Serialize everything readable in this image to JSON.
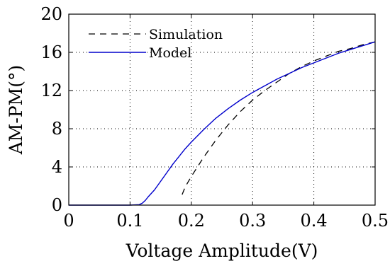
{
  "chart_data": {
    "type": "line",
    "title": "",
    "xlabel": "Voltage Amplitude(V)",
    "ylabel": "AM-PM(°)",
    "xlim": [
      0,
      0.5
    ],
    "ylim": [
      0,
      20
    ],
    "xticks": [
      0,
      0.1,
      0.2,
      0.3,
      0.4,
      0.5
    ],
    "xtick_labels": [
      "0",
      "0.1",
      "0.2",
      "0.3",
      "0.4",
      "0.5"
    ],
    "yticks": [
      0,
      4,
      8,
      12,
      16,
      20
    ],
    "ytick_labels": [
      "0",
      "4",
      "8",
      "12",
      "16",
      "20"
    ],
    "grid": true,
    "legend_position": "top-left",
    "series": [
      {
        "name": "Simulation",
        "color": "#000000",
        "style": "dashed",
        "x": [
          0.185,
          0.19,
          0.2,
          0.21,
          0.22,
          0.23,
          0.24,
          0.25,
          0.26,
          0.27,
          0.28,
          0.29,
          0.3,
          0.32,
          0.34,
          0.36,
          0.38,
          0.4,
          0.42,
          0.44,
          0.46,
          0.48,
          0.5
        ],
        "y": [
          1.1,
          1.9,
          3.0,
          4.0,
          5.0,
          5.9,
          6.8,
          7.6,
          8.4,
          9.1,
          9.8,
          10.4,
          11.0,
          12.0,
          12.9,
          13.8,
          14.5,
          15.1,
          15.6,
          16.1,
          16.4,
          16.8,
          17.1
        ]
      },
      {
        "name": "Model",
        "color": "#0000cc",
        "style": "solid",
        "x": [
          0,
          0.05,
          0.1,
          0.115,
          0.12,
          0.125,
          0.13,
          0.14,
          0.15,
          0.16,
          0.17,
          0.18,
          0.19,
          0.2,
          0.22,
          0.24,
          0.26,
          0.28,
          0.3,
          0.32,
          0.34,
          0.36,
          0.38,
          0.4,
          0.42,
          0.44,
          0.46,
          0.48,
          0.5
        ],
        "y": [
          0,
          0,
          0,
          0.05,
          0.2,
          0.5,
          0.9,
          1.6,
          2.5,
          3.4,
          4.3,
          5.1,
          5.9,
          6.6,
          7.9,
          9.1,
          10.1,
          11.0,
          11.8,
          12.5,
          13.2,
          13.8,
          14.4,
          14.9,
          15.4,
          15.9,
          16.3,
          16.7,
          17.1
        ]
      }
    ]
  }
}
